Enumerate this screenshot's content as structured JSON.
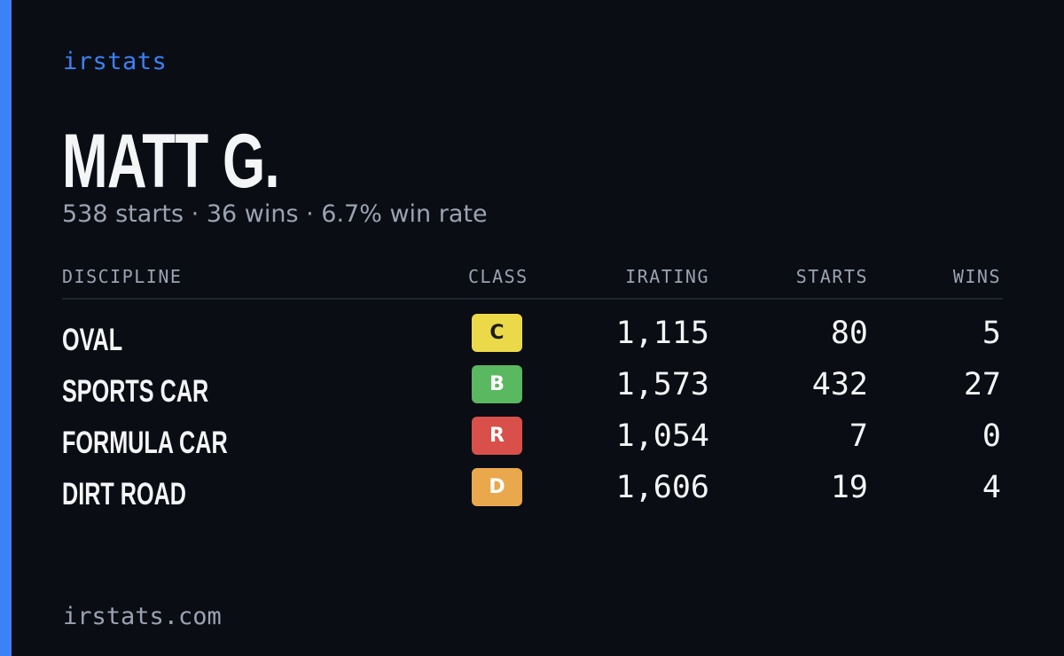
{
  "brand": "irstats",
  "driver": {
    "name": "MATT G.",
    "summary": "538 starts · 36 wins · 6.7% win rate"
  },
  "table": {
    "headers": {
      "discipline": "DISCIPLINE",
      "class": "CLASS",
      "irating": "IRATING",
      "starts": "STARTS",
      "wins": "WINS"
    },
    "rows": [
      {
        "discipline": "OVAL",
        "class": "C",
        "class_color": "#ebd949",
        "class_text_color": "#1c1c1c",
        "irating": "1,115",
        "starts": "80",
        "wins": "5"
      },
      {
        "discipline": "SPORTS CAR",
        "class": "B",
        "class_color": "#5ab860",
        "class_text_color": "#ffffff",
        "irating": "1,573",
        "starts": "432",
        "wins": "27"
      },
      {
        "discipline": "FORMULA CAR",
        "class": "R",
        "class_color": "#d9504a",
        "class_text_color": "#ffffff",
        "irating": "1,054",
        "starts": "7",
        "wins": "0"
      },
      {
        "discipline": "DIRT ROAD",
        "class": "D",
        "class_color": "#eaa84c",
        "class_text_color": "#ffffff",
        "irating": "1,606",
        "starts": "19",
        "wins": "4"
      }
    ]
  },
  "footer": "irstats.com",
  "colors": {
    "accent": "#3b82f6",
    "background": "#0a0d14",
    "muted_text": "#9aa3b2"
  }
}
